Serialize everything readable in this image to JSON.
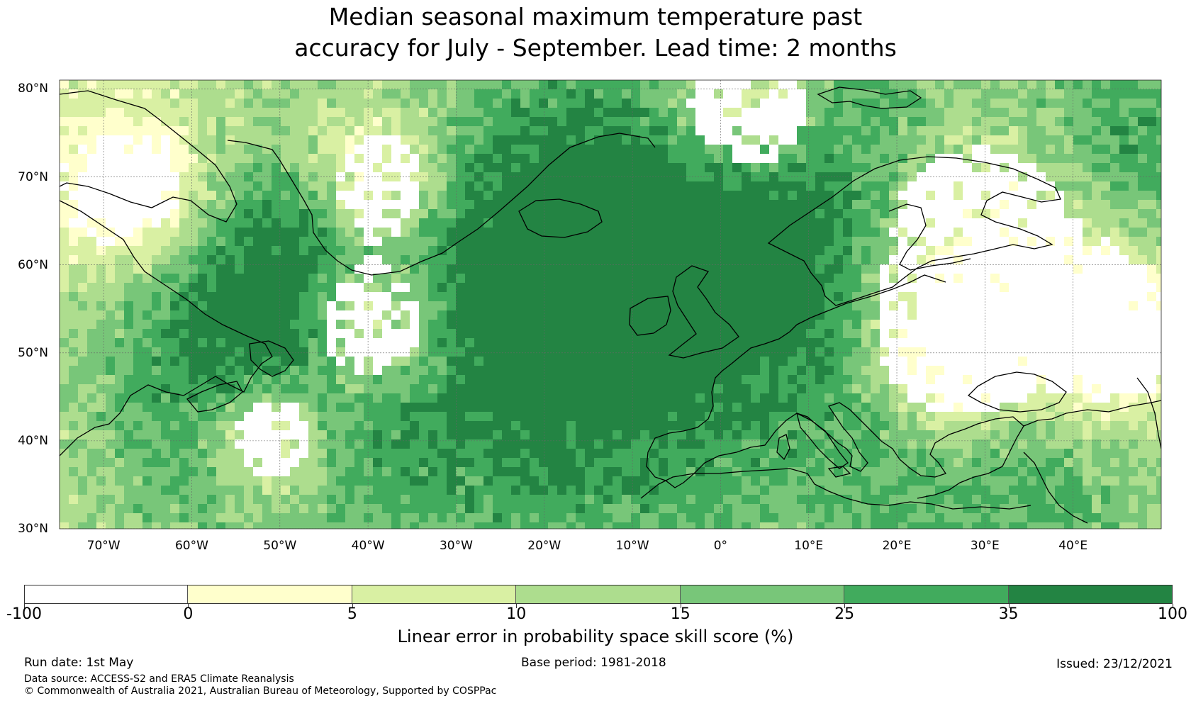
{
  "title_line1": "Median seasonal maximum temperature past",
  "title_line2": "accuracy for July - September. Lead time: 2 months",
  "map": {
    "lat_labels": [
      "80°N",
      "70°N",
      "60°N",
      "50°N",
      "40°N",
      "30°N"
    ],
    "lon_labels": [
      "70°W",
      "60°W",
      "50°W",
      "40°W",
      "30°W",
      "20°W",
      "10°W",
      "0°",
      "10°E",
      "20°E",
      "30°E",
      "40°E"
    ],
    "extent": {
      "lon_min": -75,
      "lon_max": 50,
      "lat_min": 30,
      "lat_max": 81
    },
    "ocean_color": "#ffffff",
    "coast_color": "#000000"
  },
  "colorbar": {
    "title": "Linear error in probability space skill score (%)",
    "tick_labels": [
      "-100",
      "0",
      "5",
      "10",
      "15",
      "25",
      "35",
      "100"
    ],
    "colors": [
      "#ffffff",
      "#ffffcc",
      "#d9f0a3",
      "#addd8e",
      "#78c679",
      "#41ab5d",
      "#238443"
    ]
  },
  "footer": {
    "run_date": "Run date: 1st May",
    "base_period": "Base period: 1981-2018",
    "issued": "Issued: 23/12/2021",
    "data_source": "Data source: ACCESS-S2 and ERA5 Climate Reanalysis",
    "copyright": "© Commonwealth of Australia 2021, Australian Bureau of Meteorology, Supported by COSPPac"
  }
}
